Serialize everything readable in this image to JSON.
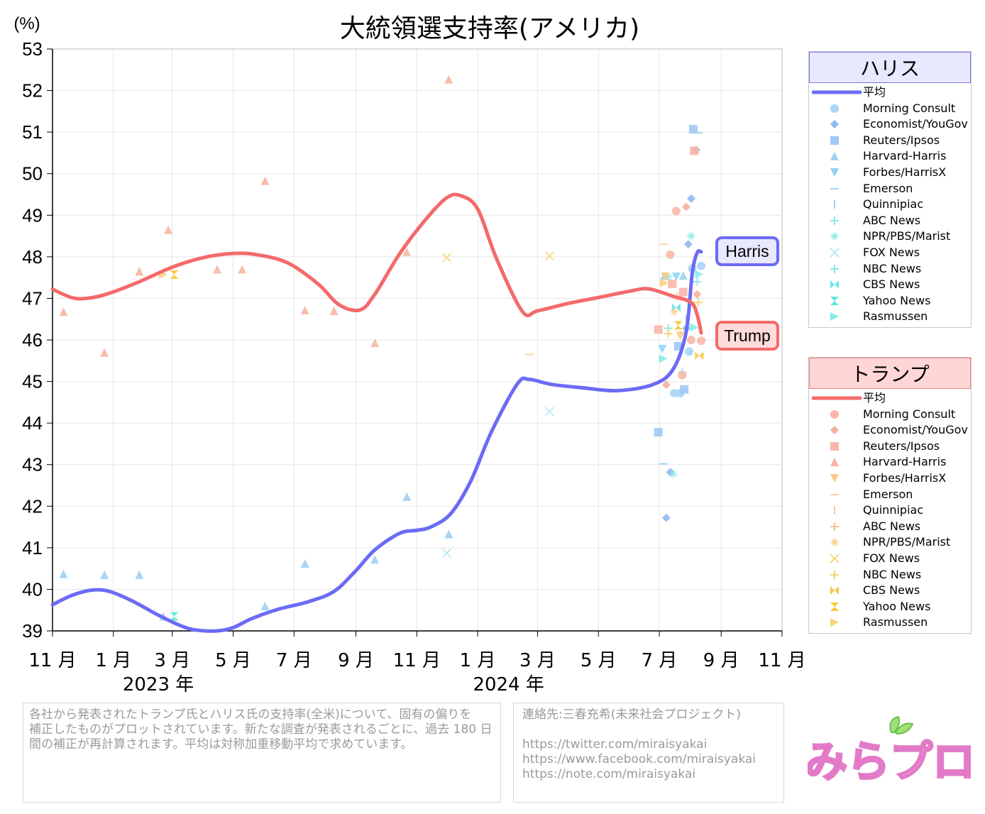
{
  "chart_data": {
    "type": "line",
    "title": "大統領選支持率(アメリカ)",
    "ylabel": "(%)",
    "ylim": [
      39,
      53
    ],
    "yticks": [
      39,
      40,
      41,
      42,
      43,
      44,
      45,
      46,
      47,
      48,
      49,
      50,
      51,
      52,
      53
    ],
    "x_range": [
      "2022-11-01",
      "2024-11-01"
    ],
    "xtick_labels": [
      {
        "date": "2022-11-01",
        "label": "11 月"
      },
      {
        "date": "2023-01-01",
        "label": "1 月"
      },
      {
        "date": "2023-03-01",
        "label": "3 月"
      },
      {
        "date": "2023-05-01",
        "label": "5 月"
      },
      {
        "date": "2023-07-01",
        "label": "7 月"
      },
      {
        "date": "2023-09-01",
        "label": "9 月"
      },
      {
        "date": "2023-11-01",
        "label": "11 月"
      },
      {
        "date": "2024-01-01",
        "label": "1 月"
      },
      {
        "date": "2024-03-01",
        "label": "3 月"
      },
      {
        "date": "2024-05-01",
        "label": "5 月"
      },
      {
        "date": "2024-07-01",
        "label": "7 月"
      },
      {
        "date": "2024-09-01",
        "label": "9 月"
      },
      {
        "date": "2024-11-01",
        "label": "11 月"
      }
    ],
    "year_labels": [
      {
        "date": "2023-02-15",
        "label": "2023 年"
      },
      {
        "date": "2024-02-01",
        "label": "2024 年"
      }
    ],
    "grid": true,
    "series": [
      {
        "name": "Harris",
        "color": "#6b6bf5",
        "line": [
          [
            "2022-11-01",
            39.63
          ],
          [
            "2022-11-20",
            39.85
          ],
          [
            "2022-12-10",
            39.98
          ],
          [
            "2022-12-28",
            39.95
          ],
          [
            "2023-01-20",
            39.72
          ],
          [
            "2023-02-15",
            39.38
          ],
          [
            "2023-03-10",
            39.12
          ],
          [
            "2023-03-25",
            39.02
          ],
          [
            "2023-04-15",
            39.0
          ],
          [
            "2023-05-01",
            39.08
          ],
          [
            "2023-05-20",
            39.3
          ],
          [
            "2023-06-15",
            39.52
          ],
          [
            "2023-07-15",
            39.7
          ],
          [
            "2023-08-10",
            39.95
          ],
          [
            "2023-09-01",
            40.45
          ],
          [
            "2023-09-20",
            40.95
          ],
          [
            "2023-10-15",
            41.35
          ],
          [
            "2023-11-01",
            41.42
          ],
          [
            "2023-11-15",
            41.5
          ],
          [
            "2023-12-05",
            41.82
          ],
          [
            "2023-12-25",
            42.6
          ],
          [
            "2024-01-15",
            43.8
          ],
          [
            "2024-02-10",
            44.95
          ],
          [
            "2024-02-22",
            45.05
          ],
          [
            "2024-03-15",
            44.93
          ],
          [
            "2024-04-15",
            44.85
          ],
          [
            "2024-05-20",
            44.78
          ],
          [
            "2024-06-25",
            44.93
          ],
          [
            "2024-07-15",
            45.3
          ],
          [
            "2024-07-28",
            46.2
          ],
          [
            "2024-08-03",
            47.6
          ],
          [
            "2024-08-08",
            48.1
          ],
          [
            "2024-08-12",
            48.12
          ]
        ],
        "polls": [
          [
            "2022-11-12",
            40.37,
            "Harvard-Harris"
          ],
          [
            "2022-12-23",
            40.35,
            "Harvard-Harris"
          ],
          [
            "2023-01-27",
            40.35,
            "Harvard-Harris"
          ],
          [
            "2023-02-20",
            39.35,
            "Harvard-Harris"
          ],
          [
            "2023-03-03",
            39.35,
            "Yahoo News"
          ],
          [
            "2023-06-02",
            39.6,
            "Harvard-Harris"
          ],
          [
            "2023-07-12",
            40.62,
            "Harvard-Harris"
          ],
          [
            "2023-09-20",
            40.72,
            "Harvard-Harris"
          ],
          [
            "2023-10-22",
            42.23,
            "Harvard-Harris"
          ],
          [
            "2023-12-01",
            40.87,
            "FOX News"
          ],
          [
            "2023-12-03",
            41.33,
            "Harvard-Harris"
          ],
          [
            "2024-03-13",
            44.28,
            "FOX News"
          ],
          [
            "2024-06-30",
            43.78,
            "Reuters/Ipsos"
          ],
          [
            "2024-07-05",
            43.02,
            "Emerson"
          ],
          [
            "2024-07-08",
            41.72,
            "Economist/YouGov"
          ],
          [
            "2024-07-12",
            42.82,
            "Economist/YouGov"
          ],
          [
            "2024-07-15",
            42.78,
            "NPR/PBS/Marist"
          ],
          [
            "2024-07-16",
            44.72,
            "Morning Consult"
          ],
          [
            "2024-07-20",
            45.85,
            "Reuters/Ipsos"
          ],
          [
            "2024-07-22",
            44.72,
            "Morning Consult"
          ],
          [
            "2024-07-26",
            44.81,
            "Reuters/Ipsos"
          ],
          [
            "2024-07-28",
            46.28,
            "Economist/YouGov"
          ],
          [
            "2024-07-30",
            48.3,
            "Economist/YouGov"
          ],
          [
            "2024-08-02",
            49.4,
            "Economist/YouGov"
          ],
          [
            "2024-08-04",
            51.07,
            "Reuters/Ipsos"
          ],
          [
            "2024-08-07",
            50.57,
            "Economist/YouGov"
          ],
          [
            "2024-08-09",
            50.98,
            "Emerson"
          ],
          [
            "2024-08-03",
            47.72,
            "Morning Consult"
          ],
          [
            "2024-08-12",
            47.78,
            "Morning Consult"
          ],
          [
            "2024-07-31",
            45.72,
            "Morning Consult"
          ],
          [
            "2024-07-06",
            47.55,
            "Harvard-Harris"
          ],
          [
            "2024-07-10",
            47.52,
            "NPR/PBS/Marist"
          ],
          [
            "2024-07-18",
            47.52,
            "Forbes/HarrisX"
          ],
          [
            "2024-07-25",
            47.55,
            "Harvard-Harris"
          ],
          [
            "2024-08-02",
            48.5,
            "NPR/PBS/Marist"
          ],
          [
            "2024-08-10",
            47.58,
            "Rasmussen"
          ],
          [
            "2024-07-04",
            45.78,
            "Forbes/HarrisX"
          ],
          [
            "2024-07-05",
            45.55,
            "Rasmussen"
          ],
          [
            "2024-07-10",
            46.28,
            "NBC News"
          ],
          [
            "2024-07-18",
            46.78,
            "CBS News"
          ],
          [
            "2024-07-24",
            45.22,
            "NBC News"
          ],
          [
            "2024-08-08",
            47.4,
            "ABC News"
          ],
          [
            "2024-07-28",
            46.5,
            "Quinnipiac"
          ],
          [
            "2024-08-05",
            46.3,
            "Rasmussen"
          ]
        ]
      },
      {
        "name": "Trump",
        "color": "#f46a6a",
        "line": [
          [
            "2022-11-01",
            47.22
          ],
          [
            "2022-11-20",
            47.02
          ],
          [
            "2022-12-05",
            47.0
          ],
          [
            "2022-12-25",
            47.1
          ],
          [
            "2023-01-25",
            47.38
          ],
          [
            "2023-03-01",
            47.75
          ],
          [
            "2023-04-01",
            47.98
          ],
          [
            "2023-05-01",
            48.08
          ],
          [
            "2023-05-25",
            48.05
          ],
          [
            "2023-06-25",
            47.85
          ],
          [
            "2023-07-25",
            47.35
          ],
          [
            "2023-08-15",
            46.85
          ],
          [
            "2023-09-05",
            46.72
          ],
          [
            "2023-09-20",
            47.1
          ],
          [
            "2023-10-15",
            48.08
          ],
          [
            "2023-11-10",
            48.9
          ],
          [
            "2023-12-01",
            49.42
          ],
          [
            "2023-12-15",
            49.47
          ],
          [
            "2024-01-01",
            49.15
          ],
          [
            "2024-01-20",
            47.95
          ],
          [
            "2024-02-15",
            46.68
          ],
          [
            "2024-03-01",
            46.7
          ],
          [
            "2024-04-01",
            46.88
          ],
          [
            "2024-05-01",
            47.02
          ],
          [
            "2024-06-01",
            47.17
          ],
          [
            "2024-06-20",
            47.23
          ],
          [
            "2024-07-15",
            47.05
          ],
          [
            "2024-08-02",
            46.9
          ],
          [
            "2024-08-08",
            46.6
          ],
          [
            "2024-08-12",
            46.17
          ]
        ],
        "polls": [
          [
            "2022-11-12",
            46.68,
            "Harvard-Harris"
          ],
          [
            "2022-12-23",
            45.7,
            "Harvard-Harris"
          ],
          [
            "2023-01-27",
            47.65,
            "Harvard-Harris"
          ],
          [
            "2023-02-20",
            47.57,
            "Rasmussen"
          ],
          [
            "2023-02-25",
            48.65,
            "Harvard-Harris"
          ],
          [
            "2023-03-03",
            47.57,
            "Yahoo News"
          ],
          [
            "2023-04-15",
            47.7,
            "Harvard-Harris"
          ],
          [
            "2023-05-10",
            47.7,
            "Harvard-Harris"
          ],
          [
            "2023-06-02",
            49.83,
            "Harvard-Harris"
          ],
          [
            "2023-07-12",
            46.72,
            "Harvard-Harris"
          ],
          [
            "2023-08-10",
            46.7,
            "Harvard-Harris"
          ],
          [
            "2023-09-20",
            45.93,
            "Harvard-Harris"
          ],
          [
            "2023-10-22",
            48.12,
            "Harvard-Harris"
          ],
          [
            "2023-12-01",
            47.98,
            "FOX News"
          ],
          [
            "2023-12-03",
            52.27,
            "Harvard-Harris"
          ],
          [
            "2024-02-22",
            45.65,
            "Emerson"
          ],
          [
            "2024-03-13",
            48.02,
            "FOX News"
          ],
          [
            "2024-06-30",
            46.25,
            "Reuters/Ipsos"
          ],
          [
            "2024-07-06",
            47.37,
            "Rasmussen"
          ],
          [
            "2024-07-08",
            44.92,
            "Economist/YouGov"
          ],
          [
            "2024-07-10",
            46.15,
            "NBC News"
          ],
          [
            "2024-07-12",
            48.05,
            "Morning Consult"
          ],
          [
            "2024-07-14",
            47.35,
            "Reuters/Ipsos"
          ],
          [
            "2024-07-18",
            49.1,
            "Morning Consult"
          ],
          [
            "2024-07-22",
            46.1,
            "Forbes/HarrisX"
          ],
          [
            "2024-07-24",
            45.15,
            "Morning Consult"
          ],
          [
            "2024-07-28",
            49.2,
            "Economist/YouGov"
          ],
          [
            "2024-08-02",
            46.0,
            "Morning Consult"
          ],
          [
            "2024-08-05",
            50.55,
            "Reuters/Ipsos"
          ],
          [
            "2024-08-08",
            47.1,
            "Economist/YouGov"
          ],
          [
            "2024-08-12",
            45.98,
            "Morning Consult"
          ],
          [
            "2024-08-10",
            45.62,
            "CBS News"
          ],
          [
            "2024-07-16",
            46.68,
            "NPR/PBS/Marist"
          ],
          [
            "2024-07-19",
            47.05,
            "ABC News"
          ],
          [
            "2024-08-09",
            46.9,
            "NBC News"
          ],
          [
            "2024-07-20",
            46.35,
            "Yahoo News"
          ],
          [
            "2024-07-07",
            47.52,
            "Forbes/HarrisX"
          ],
          [
            "2024-07-05",
            48.3,
            "Emerson"
          ],
          [
            "2024-07-25",
            47.15,
            "Reuters/Ipsos"
          ]
        ]
      }
    ],
    "end_labels": {
      "harris": "Harris",
      "trump": "Trump"
    }
  },
  "legend_harris": {
    "title": "ハリス",
    "avg_label": "平均",
    "items": [
      "Morning Consult",
      "Economist/YouGov",
      "Reuters/Ipsos",
      "Harvard-Harris",
      "Forbes/HarrisX",
      "Emerson",
      "Quinnipiac",
      "ABC News",
      "NPR/PBS/Marist",
      "FOX News",
      "NBC News",
      "CBS News",
      "Yahoo News",
      "Rasmussen"
    ],
    "colors": [
      "#a9d4f5",
      "#8fb8f0",
      "#9fc9f5",
      "#9ed0f2",
      "#8ed4f7",
      "#9fd2f7",
      "#a8c8f5",
      "#8ee6f0",
      "#8fe7e8",
      "#a9e6ef",
      "#88e8e8",
      "#6ee8ee",
      "#5ee8dc",
      "#84eee6"
    ],
    "head_bg": "#e8e8ff",
    "head_border": "#7a7ae8"
  },
  "legend_trump": {
    "title": "トランプ",
    "avg_label": "平均",
    "items": [
      "Morning Consult",
      "Economist/YouGov",
      "Reuters/Ipsos",
      "Harvard-Harris",
      "Forbes/HarrisX",
      "Emerson",
      "Quinnipiac",
      "ABC News",
      "NPR/PBS/Marist",
      "FOX News",
      "NBC News",
      "CBS News",
      "Yahoo News",
      "Rasmussen"
    ],
    "colors": [
      "#f8b9a8",
      "#f6b09e",
      "#f8b6a8",
      "#f6b6a2",
      "#f8cc84",
      "#f8d09a",
      "#f8c8b4",
      "#f8c28e",
      "#f8d088",
      "#f8d06e",
      "#f8d06a",
      "#f8c850",
      "#f8c83c",
      "#f8d47a"
    ],
    "head_bg": "#ffd6d6",
    "head_border": "#f08080"
  },
  "shape_names": [
    "circle",
    "diamond",
    "square",
    "triangle-up",
    "triangle-down",
    "dash",
    "vbar",
    "plus",
    "asterisk",
    "cross",
    "plus-thin",
    "bowtie",
    "hourglass",
    "triangle-right"
  ],
  "note": {
    "lines": [
      "各社から発表されたトランプ氏とハリス氏の支持率(全米)について、固有の偏りを",
      "補正したものがプロットされています。新たな調査が発表されるごとに、過去 180 日",
      "間の補正が再計算されます。平均は対称加重移動平均で求めています。"
    ]
  },
  "contact": {
    "title": "連絡先:三春充希(未来社会プロジェクト)",
    "links": [
      "https://twitter.com/miraisyakai",
      "https://www.facebook.com/miraisyakai",
      "https://note.com/miraisyakai"
    ]
  },
  "logo": {
    "text": "みらプロ"
  }
}
